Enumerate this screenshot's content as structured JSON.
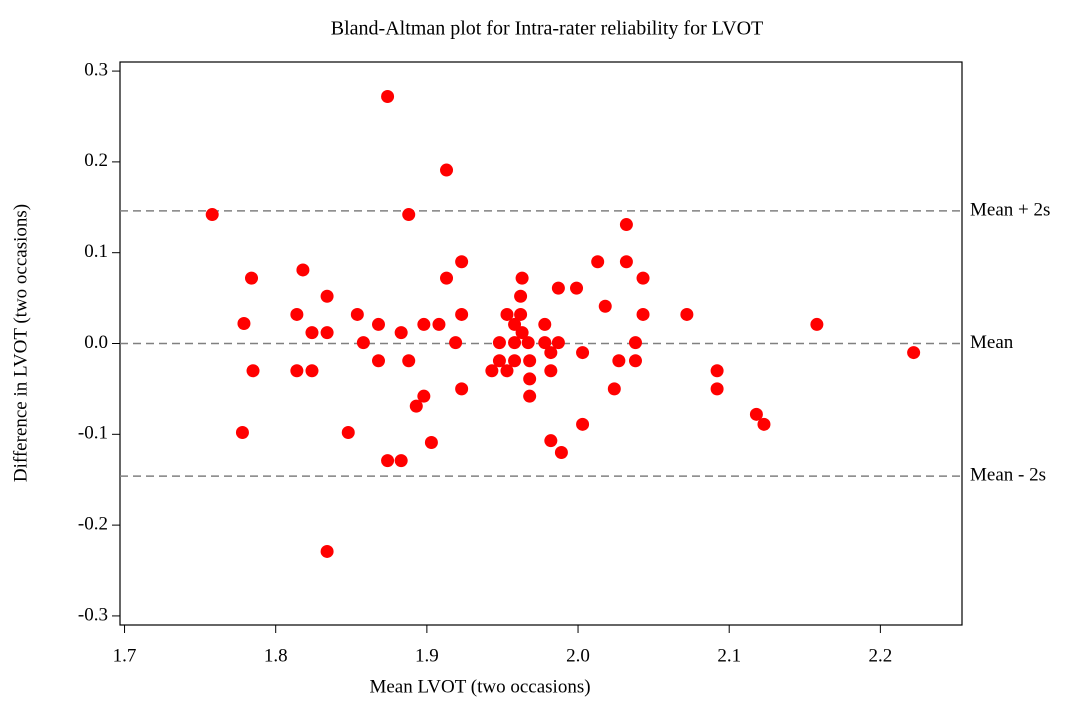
{
  "chart_data": {
    "type": "scatter",
    "title": "Bland-Altman plot for Intra-rater reliability for LVOT",
    "x_label": "Mean LVOT (two occasions)",
    "y_label": "Difference in LVOT  (two occasions)",
    "color": "#ff0000",
    "xlim": [
      1.697,
      2.254
    ],
    "ylim": [
      -0.31,
      0.31
    ],
    "xticks": [
      1.7,
      1.8,
      1.9,
      {
        "value": 2.0,
        "label": "2.0"
      },
      2.1,
      2.2
    ],
    "yticks": [
      {
        "value": 0.3,
        "label": "0.3"
      },
      {
        "value": 0.2,
        "label": "0.2"
      },
      {
        "value": 0.1,
        "label": "0.1"
      },
      {
        "value": 0.0,
        "label": "0.0"
      },
      {
        "value": -0.1,
        "label": "-0.1"
      },
      {
        "value": -0.2,
        "label": "-0.2"
      },
      {
        "value": -0.3,
        "label": "-0.3"
      }
    ],
    "reference_lines": [
      {
        "value": 0.146,
        "label": "Mean + 2s"
      },
      {
        "value": 0.0,
        "label": "Mean"
      },
      {
        "value": -0.146,
        "label": "Mean - 2s"
      }
    ],
    "x": [
      1.758,
      1.784,
      1.779,
      1.778,
      1.785,
      1.814,
      1.824,
      1.818,
      1.814,
      1.824,
      1.834,
      1.834,
      1.834,
      1.848,
      1.854,
      1.858,
      1.868,
      1.868,
      1.874,
      1.874,
      1.883,
      1.883,
      1.888,
      1.888,
      1.893,
      1.898,
      1.898,
      1.903,
      1.908,
      1.913,
      1.913,
      1.919,
      1.923,
      1.923,
      1.923,
      1.943,
      1.948,
      1.948,
      1.953,
      1.953,
      1.958,
      1.958,
      1.958,
      1.962,
      1.963,
      1.962,
      1.963,
      1.967,
      1.968,
      1.968,
      1.968,
      1.978,
      1.978,
      1.982,
      1.982,
      1.982,
      1.987,
      1.987,
      1.989,
      1.999,
      2.003,
      2.003,
      2.013,
      2.018,
      2.024,
      2.027,
      2.032,
      2.032,
      2.038,
      2.038,
      2.043,
      2.043,
      2.072,
      2.092,
      2.092,
      2.118,
      2.123,
      2.158,
      2.222
    ],
    "values": [
      0.142,
      0.072,
      0.022,
      -0.098,
      -0.03,
      -0.03,
      -0.03,
      0.081,
      0.032,
      0.012,
      0.052,
      0.012,
      -0.229,
      -0.098,
      0.032,
      0.001,
      0.021,
      -0.019,
      0.272,
      -0.129,
      0.012,
      -0.129,
      0.142,
      -0.019,
      -0.069,
      0.021,
      -0.058,
      -0.109,
      0.021,
      0.072,
      0.191,
      0.001,
      0.09,
      0.032,
      -0.05,
      -0.03,
      0.001,
      -0.019,
      0.032,
      -0.03,
      0.021,
      0.001,
      -0.019,
      0.052,
      0.072,
      0.032,
      0.012,
      0.001,
      -0.019,
      -0.039,
      -0.058,
      0.021,
      0.001,
      -0.107,
      -0.01,
      -0.03,
      0.061,
      0.001,
      -0.12,
      0.061,
      -0.01,
      -0.089,
      0.09,
      0.041,
      -0.05,
      -0.019,
      0.131,
      0.09,
      0.001,
      -0.019,
      0.072,
      0.032,
      0.032,
      -0.03,
      -0.05,
      -0.078,
      -0.089,
      0.021,
      -0.01
    ]
  }
}
